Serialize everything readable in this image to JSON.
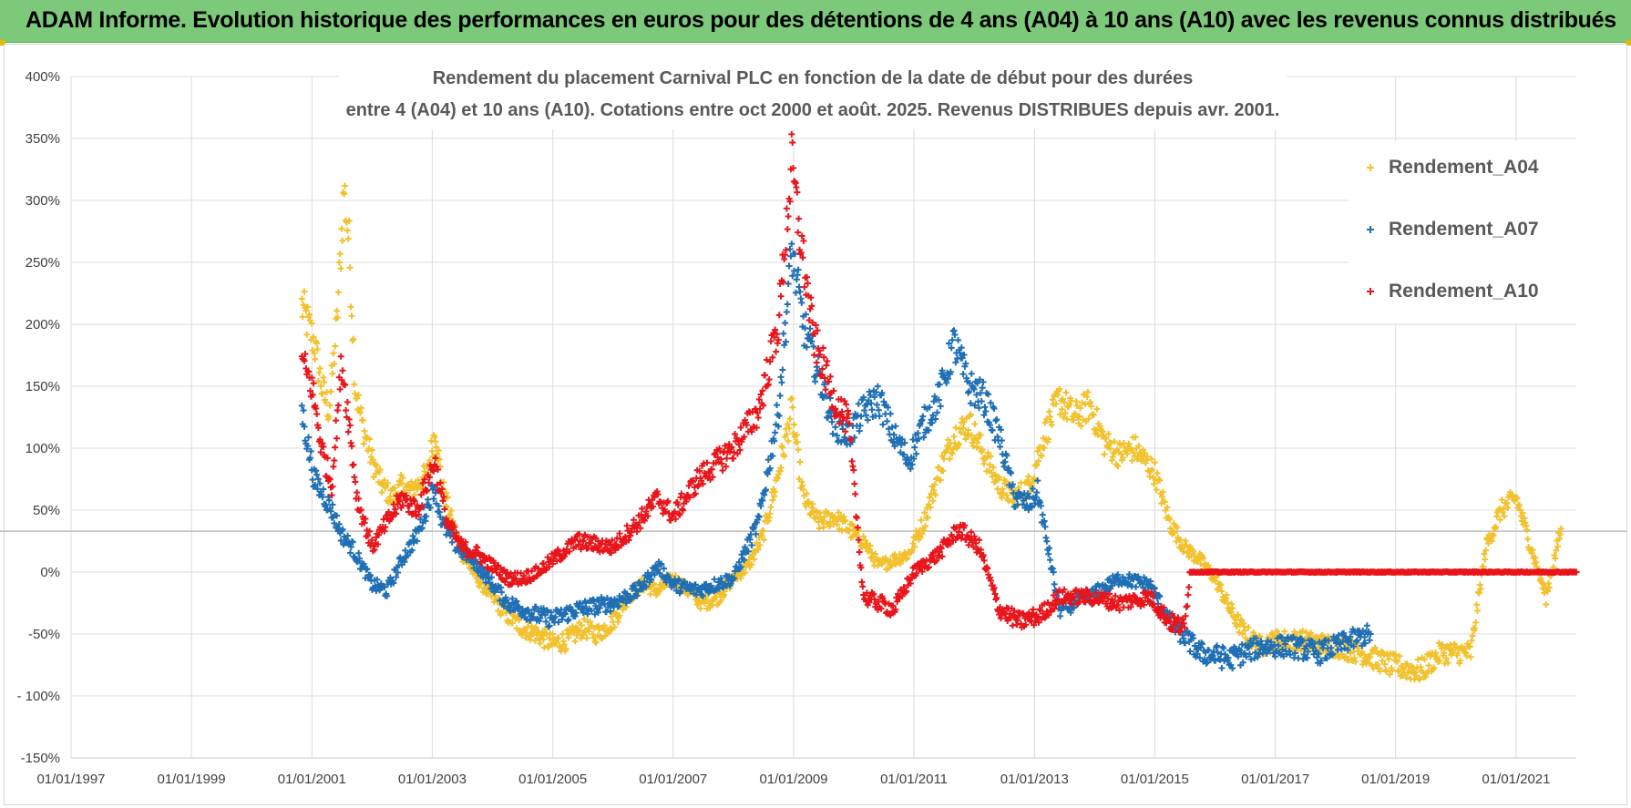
{
  "header": {
    "title": "ADAM Informe. Evolution historique des performances en euros pour des détentions de 4 ans (A04) à 10 ans (A10) avec les revenus connus distribués"
  },
  "colors": {
    "A04": "#f2c12e",
    "A07": "#1f6fb5",
    "A10": "#e8151b",
    "header_bg": "#7dc97a"
  },
  "chart_data": {
    "type": "scatter",
    "title_lines": [
      "Rendement du placement Carnival PLC en fonction de la date de début pour des durées",
      "entre 4 (A04) et 10 ans (A10).  Cotations entre oct 2000 et août. 2025. Revenus DISTRIBUES depuis avr. 2001."
    ],
    "xlabel": "",
    "ylabel": "",
    "x_ticks": [
      "01/01/1997",
      "01/01/1999",
      "01/01/2001",
      "01/01/2003",
      "01/01/2005",
      "01/01/2007",
      "01/01/2009",
      "01/01/2011",
      "01/01/2013",
      "01/01/2015",
      "01/01/2017",
      "01/01/2019",
      "01/01/2021"
    ],
    "x_range": [
      "1997-01-01",
      "2022-01-01"
    ],
    "y_ticks": [
      "400%",
      "350%",
      "300%",
      "250%",
      "200%",
      "150%",
      "100%",
      "50%",
      "0%",
      "-50%",
      "- 100%",
      "-150%"
    ],
    "ylim": [
      -150,
      400
    ],
    "reference_line_y": 33,
    "grid": true,
    "legend_position": "top-right",
    "series": [
      {
        "name": "Rendement_A04",
        "color": "#f2c12e",
        "points": [
          [
            "2000-11-01",
            215
          ],
          [
            "2001-01-15",
            185
          ],
          [
            "2001-03-01",
            150
          ],
          [
            "2001-04-15",
            130
          ],
          [
            "2001-06-01",
            200
          ],
          [
            "2001-07-15",
            310
          ],
          [
            "2001-08-15",
            265
          ],
          [
            "2001-09-20",
            150
          ],
          [
            "2001-11-01",
            120
          ],
          [
            "2002-01-01",
            90
          ],
          [
            "2002-03-01",
            70
          ],
          [
            "2002-05-01",
            60
          ],
          [
            "2002-07-01",
            70
          ],
          [
            "2002-09-01",
            65
          ],
          [
            "2002-12-01",
            80
          ],
          [
            "2003-01-20",
            115
          ],
          [
            "2003-03-01",
            70
          ],
          [
            "2003-05-01",
            40
          ],
          [
            "2003-07-01",
            15
          ],
          [
            "2003-10-01",
            -5
          ],
          [
            "2004-01-01",
            -20
          ],
          [
            "2004-04-01",
            -35
          ],
          [
            "2004-07-01",
            -45
          ],
          [
            "2004-10-01",
            -50
          ],
          [
            "2005-01-01",
            -58
          ],
          [
            "2005-04-01",
            -55
          ],
          [
            "2005-07-01",
            -45
          ],
          [
            "2005-10-01",
            -50
          ],
          [
            "2006-01-01",
            -40
          ],
          [
            "2006-04-01",
            -20
          ],
          [
            "2006-07-01",
            -10
          ],
          [
            "2006-10-01",
            -15
          ],
          [
            "2007-01-01",
            -5
          ],
          [
            "2007-04-01",
            -15
          ],
          [
            "2007-07-01",
            -25
          ],
          [
            "2007-10-01",
            -20
          ],
          [
            "2008-01-01",
            -5
          ],
          [
            "2008-04-01",
            5
          ],
          [
            "2008-07-01",
            30
          ],
          [
            "2008-10-01",
            80
          ],
          [
            "2008-12-20",
            130
          ],
          [
            "2009-03-01",
            60
          ],
          [
            "2009-06-01",
            40
          ],
          [
            "2009-09-01",
            45
          ],
          [
            "2009-12-01",
            35
          ],
          [
            "2010-03-01",
            25
          ],
          [
            "2010-06-01",
            5
          ],
          [
            "2010-09-01",
            10
          ],
          [
            "2010-12-01",
            15
          ],
          [
            "2011-03-01",
            40
          ],
          [
            "2011-06-01",
            80
          ],
          [
            "2011-09-01",
            110
          ],
          [
            "2011-12-01",
            120
          ],
          [
            "2012-03-01",
            95
          ],
          [
            "2012-06-01",
            70
          ],
          [
            "2012-09-01",
            60
          ],
          [
            "2012-12-01",
            70
          ],
          [
            "2013-03-01",
            110
          ],
          [
            "2013-06-01",
            140
          ],
          [
            "2013-09-01",
            125
          ],
          [
            "2013-12-01",
            135
          ],
          [
            "2014-03-01",
            105
          ],
          [
            "2014-06-01",
            95
          ],
          [
            "2014-09-01",
            100
          ],
          [
            "2015-01-01",
            80
          ],
          [
            "2015-04-01",
            40
          ],
          [
            "2015-07-01",
            20
          ],
          [
            "2015-10-01",
            10
          ],
          [
            "2016-01-01",
            -5
          ],
          [
            "2016-04-01",
            -30
          ],
          [
            "2016-07-01",
            -50
          ],
          [
            "2016-10-01",
            -60
          ],
          [
            "2017-01-01",
            -55
          ],
          [
            "2017-06-01",
            -55
          ],
          [
            "2018-01-01",
            -60
          ],
          [
            "2018-06-01",
            -65
          ],
          [
            "2018-12-01",
            -75
          ],
          [
            "2019-06-01",
            -80
          ],
          [
            "2019-10-01",
            -65
          ],
          [
            "2020-04-01",
            -65
          ],
          [
            "2020-07-01",
            20
          ],
          [
            "2020-10-01",
            50
          ],
          [
            "2021-01-01",
            60
          ],
          [
            "2021-04-01",
            20
          ],
          [
            "2021-07-01",
            -20
          ],
          [
            "2021-10-01",
            35
          ]
        ]
      },
      {
        "name": "Rendement_A07",
        "color": "#1f6fb5",
        "points": [
          [
            "2000-11-01",
            130
          ],
          [
            "2001-01-15",
            75
          ],
          [
            "2001-03-01",
            65
          ],
          [
            "2001-05-01",
            50
          ],
          [
            "2001-07-01",
            30
          ],
          [
            "2001-09-01",
            20
          ],
          [
            "2001-11-01",
            5
          ],
          [
            "2002-01-01",
            -10
          ],
          [
            "2002-04-01",
            -15
          ],
          [
            "2002-07-01",
            10
          ],
          [
            "2002-10-01",
            30
          ],
          [
            "2003-01-15",
            70
          ],
          [
            "2003-03-01",
            40
          ],
          [
            "2003-06-01",
            20
          ],
          [
            "2003-09-01",
            10
          ],
          [
            "2004-01-01",
            -10
          ],
          [
            "2004-04-01",
            -25
          ],
          [
            "2004-07-01",
            -30
          ],
          [
            "2004-10-01",
            -35
          ],
          [
            "2005-01-01",
            -38
          ],
          [
            "2005-06-01",
            -30
          ],
          [
            "2006-01-01",
            -25
          ],
          [
            "2006-06-01",
            -15
          ],
          [
            "2006-10-01",
            5
          ],
          [
            "2007-01-01",
            -10
          ],
          [
            "2007-06-01",
            -15
          ],
          [
            "2008-01-01",
            -5
          ],
          [
            "2008-06-01",
            40
          ],
          [
            "2008-10-01",
            130
          ],
          [
            "2008-12-20",
            260
          ],
          [
            "2009-03-01",
            200
          ],
          [
            "2009-06-01",
            160
          ],
          [
            "2009-09-01",
            120
          ],
          [
            "2009-12-01",
            110
          ],
          [
            "2010-03-01",
            130
          ],
          [
            "2010-06-01",
            140
          ],
          [
            "2010-09-01",
            110
          ],
          [
            "2010-12-01",
            90
          ],
          [
            "2011-03-01",
            120
          ],
          [
            "2011-06-01",
            140
          ],
          [
            "2011-09-01",
            185
          ],
          [
            "2011-12-01",
            150
          ],
          [
            "2012-03-01",
            140
          ],
          [
            "2012-06-01",
            110
          ],
          [
            "2012-09-01",
            60
          ],
          [
            "2012-12-01",
            55
          ],
          [
            "2013-01-20",
            65
          ],
          [
            "2013-06-01",
            -30
          ],
          [
            "2013-12-01",
            -20
          ],
          [
            "2014-06-01",
            -5
          ],
          [
            "2014-12-01",
            -10
          ],
          [
            "2015-04-01",
            -40
          ],
          [
            "2015-10-01",
            -65
          ],
          [
            "2016-04-01",
            -70
          ],
          [
            "2016-10-01",
            -60
          ],
          [
            "2017-04-01",
            -60
          ],
          [
            "2017-10-01",
            -65
          ],
          [
            "2018-04-01",
            -55
          ],
          [
            "2018-08-01",
            -50
          ]
        ]
      },
      {
        "name": "Rendement_A10",
        "color": "#e8151b",
        "points": [
          [
            "2000-11-01",
            170
          ],
          [
            "2001-01-01",
            150
          ],
          [
            "2001-03-01",
            100
          ],
          [
            "2001-05-01",
            70
          ],
          [
            "2001-07-01",
            170
          ],
          [
            "2001-08-15",
            120
          ],
          [
            "2001-10-01",
            60
          ],
          [
            "2002-01-01",
            20
          ],
          [
            "2002-04-01",
            40
          ],
          [
            "2002-07-01",
            60
          ],
          [
            "2002-10-01",
            50
          ],
          [
            "2003-01-15",
            90
          ],
          [
            "2003-04-01",
            40
          ],
          [
            "2003-07-01",
            20
          ],
          [
            "2003-10-01",
            15
          ],
          [
            "2004-01-01",
            5
          ],
          [
            "2004-04-01",
            -5
          ],
          [
            "2004-07-01",
            -5
          ],
          [
            "2004-10-01",
            0
          ],
          [
            "2005-01-01",
            10
          ],
          [
            "2005-06-01",
            25
          ],
          [
            "2006-01-01",
            20
          ],
          [
            "2006-06-01",
            40
          ],
          [
            "2006-10-01",
            60
          ],
          [
            "2007-01-01",
            45
          ],
          [
            "2007-06-01",
            75
          ],
          [
            "2008-01-01",
            100
          ],
          [
            "2008-06-01",
            130
          ],
          [
            "2008-10-01",
            200
          ],
          [
            "2008-12-20",
            330
          ],
          [
            "2009-02-01",
            280
          ],
          [
            "2009-05-01",
            190
          ],
          [
            "2009-09-01",
            140
          ],
          [
            "2009-12-01",
            120
          ],
          [
            "2010-03-01",
            -20
          ],
          [
            "2010-06-01",
            -25
          ],
          [
            "2010-09-01",
            -30
          ],
          [
            "2011-01-01",
            0
          ],
          [
            "2011-06-01",
            15
          ],
          [
            "2011-10-01",
            35
          ],
          [
            "2012-02-01",
            20
          ],
          [
            "2012-06-01",
            -30
          ],
          [
            "2012-10-01",
            -40
          ],
          [
            "2013-02-01",
            -35
          ],
          [
            "2013-06-01",
            -20
          ],
          [
            "2013-12-01",
            -20
          ],
          [
            "2014-06-01",
            -25
          ],
          [
            "2014-12-01",
            -20
          ],
          [
            "2015-04-01",
            -40
          ],
          [
            "2015-07-01",
            -45
          ],
          [
            "2015-08-01",
            0
          ],
          [
            "2016-06-01",
            0
          ],
          [
            "2017-06-01",
            0
          ],
          [
            "2018-06-01",
            0
          ],
          [
            "2019-06-01",
            0
          ],
          [
            "2020-06-01",
            0
          ],
          [
            "2021-06-01",
            0
          ],
          [
            "2022-01-01",
            0
          ]
        ]
      }
    ]
  }
}
